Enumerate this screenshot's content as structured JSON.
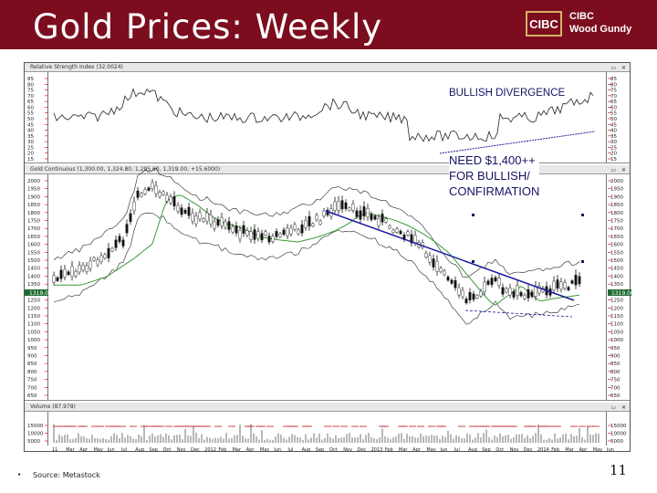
{
  "slide": {
    "title": "Gold Prices: Weekly",
    "logo_mark": "CIBC",
    "logo_text": "CIBC\nWood Gundy",
    "bullet": "•",
    "source": "Source: Metastock",
    "page_number": "11"
  },
  "panels": {
    "rsi": {
      "header": "Relative Strength Index (32.0024)",
      "ticks": [
        "85",
        "80",
        "75",
        "70",
        "65",
        "60",
        "55",
        "50",
        "45",
        "40",
        "35",
        "30",
        "25",
        "20",
        "15"
      ]
    },
    "price": {
      "header": "Gold Continuous (1,300.00, 1,324.80, 1,295.60, 1,319.00, +15.6000)",
      "ticks": [
        "2000",
        "1950",
        "1900",
        "1850",
        "1800",
        "1750",
        "1700",
        "1650",
        "1600",
        "1550",
        "1500",
        "1450",
        "1400",
        "1350",
        "1300",
        "1250",
        "1200",
        "1150",
        "1100",
        "1050",
        "1000",
        "950",
        "900",
        "850",
        "800",
        "750",
        "700",
        "650"
      ],
      "price_label": "1319.00"
    },
    "volume": {
      "header": "Volume (87,978)",
      "ticks": [
        "15000",
        "10000",
        "5000"
      ],
      "x_labels": [
        "11",
        "Mar",
        "Apr",
        "May",
        "Jun",
        "Jul",
        "Aug",
        "Sep",
        "Oct",
        "Nov",
        "Dec",
        "2012",
        "Feb",
        "Mar",
        "Apr",
        "May",
        "Jun",
        "Jul",
        "Aug",
        "Sep",
        "Oct",
        "Nov",
        "Dec",
        "2013",
        "Feb",
        "Mar",
        "Apr",
        "May",
        "Jun",
        "Jul",
        "Aug",
        "Sep",
        "Oct",
        "Nov",
        "Dec",
        "2014",
        "Feb",
        "Mar",
        "Apr",
        "May",
        "Jun"
      ]
    }
  },
  "annotations": {
    "bullish": "BULLISH DIVERGENCE",
    "need": "NEED $1,400++\nFOR BULLISH/\nCONFIRMATION"
  },
  "colors": {
    "header_band": "#7b0d1e",
    "annotation": "#141464",
    "trendline": "#1a1aa0",
    "ma_line": "#3a9a3a",
    "volume_bar": "#c01818"
  }
}
